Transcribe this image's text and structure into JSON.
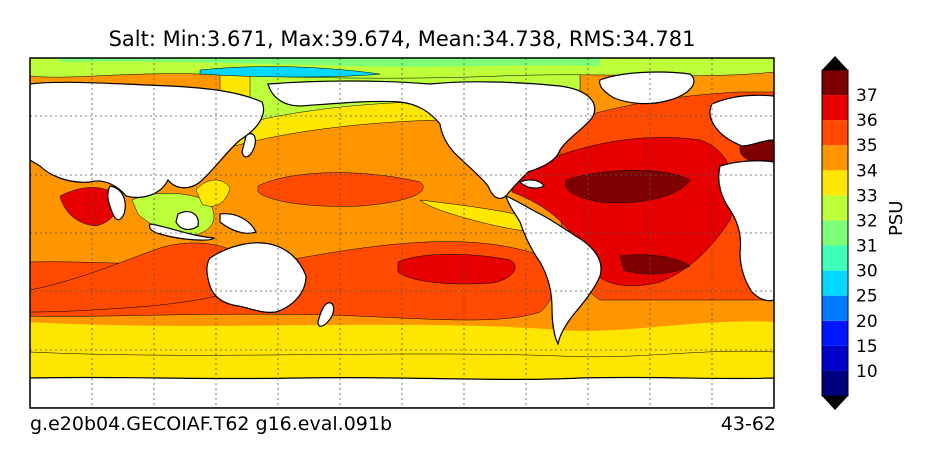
{
  "title": "Salt: Min:3.671, Max:39.674, Mean:34.738, RMS:34.781",
  "footer_left": "g.e20b04.GECOIAF.T62 g16.eval.091b",
  "footer_right": "43-62",
  "colorbar": {
    "units": "PSU",
    "levels": [
      "10",
      "15",
      "20",
      "25",
      "30",
      "31",
      "32",
      "33",
      "34",
      "35",
      "36",
      "37"
    ],
    "colors": [
      "#00007f",
      "#0000c8",
      "#0018ff",
      "#0078ff",
      "#00d8ff",
      "#3effb8",
      "#7eff78",
      "#bcff3a",
      "#ffe600",
      "#ff9600",
      "#ff4a00",
      "#e60000",
      "#7f0000"
    ]
  },
  "map": {
    "projection": "cylindrical",
    "land_color": "#ffffff",
    "grid": "dotted",
    "field": "sea surface salinity"
  }
}
